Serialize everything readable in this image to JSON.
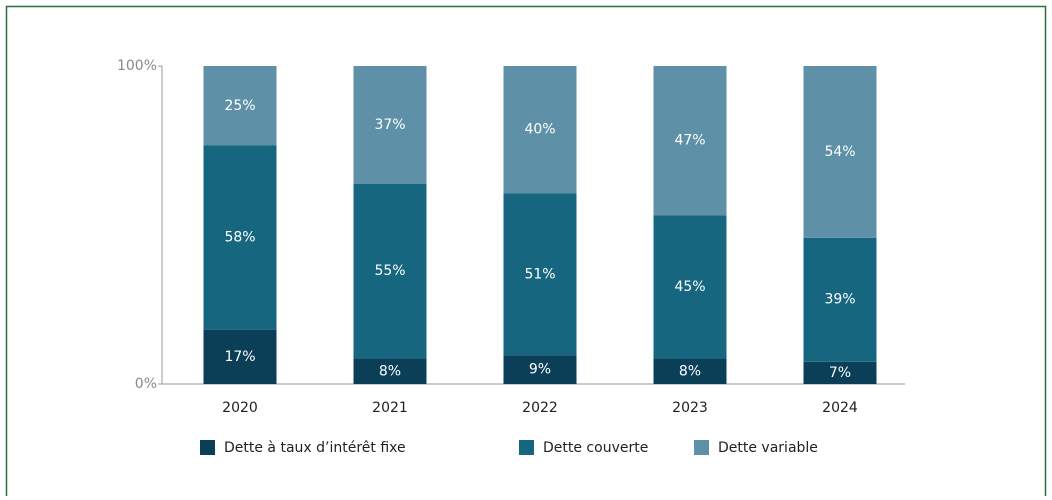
{
  "chart_data": {
    "type": "stacked_bar",
    "categories": [
      "2020",
      "2021",
      "2022",
      "2023",
      "2024"
    ],
    "series": [
      {
        "name": "Dette à taux d’intérêt fixe",
        "color": "#0b3e57",
        "values": [
          17,
          8,
          9,
          8,
          7
        ],
        "value_labels": [
          "17%",
          "8%",
          "9%",
          "8%",
          "7%"
        ]
      },
      {
        "name": "Dette couverte",
        "color": "#176680",
        "values": [
          58,
          55,
          51,
          45,
          39
        ],
        "value_labels": [
          "58%",
          "55%",
          "51%",
          "45%",
          "39%"
        ]
      },
      {
        "name": "Dette variable",
        "color": "#5e90a8",
        "values": [
          25,
          37,
          40,
          47,
          54
        ],
        "value_labels": [
          "25%",
          "37%",
          "40%",
          "47%",
          "54%"
        ]
      }
    ],
    "ylim": [
      0,
      100
    ],
    "yticks": [
      {
        "value": 0,
        "label": "0%"
      },
      {
        "value": 100,
        "label": "100%"
      }
    ],
    "grid": false,
    "legend": "bottom"
  }
}
